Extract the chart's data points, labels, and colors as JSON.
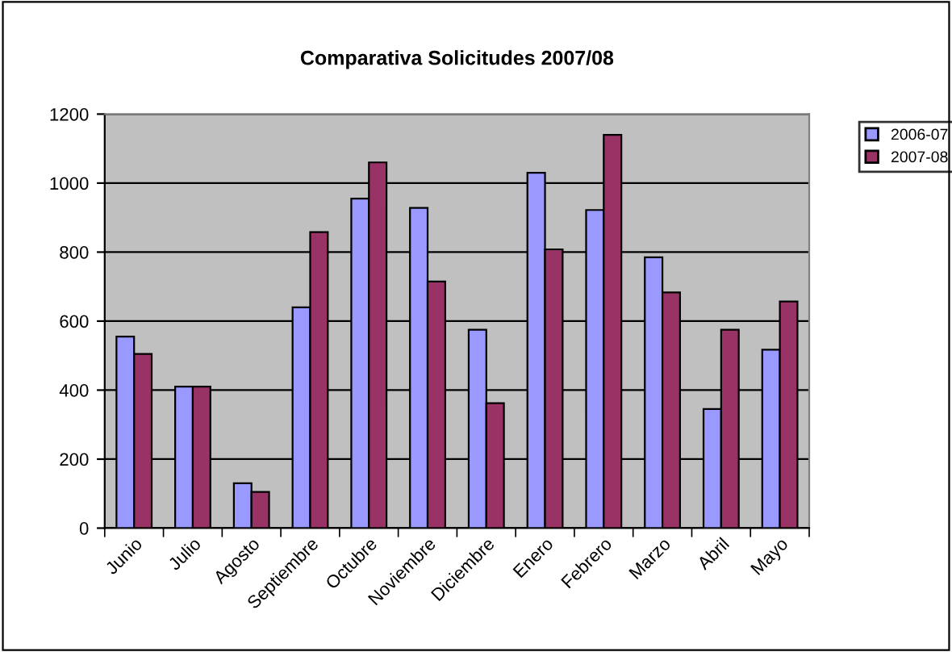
{
  "chart_data": {
    "type": "bar",
    "title": "Comparativa Solicitudes 2007/08",
    "categories": [
      "Junio",
      "Julio",
      "Agosto",
      "Septiembre",
      "Octubre",
      "Noviembre",
      "Diciembre",
      "Enero",
      "Febrero",
      "Marzo",
      "Abril",
      "Mayo"
    ],
    "series": [
      {
        "name": "2006-07",
        "color": "#9999ff",
        "values": [
          555,
          410,
          130,
          640,
          955,
          928,
          575,
          1030,
          922,
          785,
          345,
          517
        ]
      },
      {
        "name": "2007-08",
        "color": "#993366",
        "values": [
          505,
          410,
          105,
          858,
          1060,
          715,
          362,
          808,
          1140,
          683,
          575,
          657
        ]
      }
    ],
    "ylim": [
      0,
      1200
    ],
    "yticks": [
      0,
      200,
      400,
      600,
      800,
      1000,
      1200
    ],
    "grid": "y",
    "legend": "top right"
  }
}
